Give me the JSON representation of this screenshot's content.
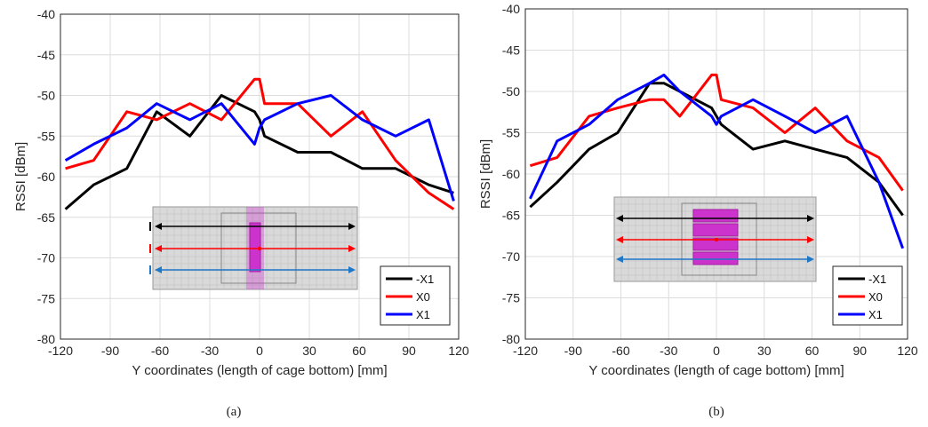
{
  "chart_data": [
    {
      "type": "line",
      "caption": "(a)",
      "xlabel": "Y coordinates (length of cage bottom) [mm]",
      "ylabel": "RSSI [dBm]",
      "xlim": [
        -120,
        120
      ],
      "ylim": [
        -80,
        -40
      ],
      "xticks": [
        "-120",
        "-90",
        "-60",
        "-30",
        "0",
        "30",
        "60",
        "90",
        "120"
      ],
      "yticks": [
        "-40",
        "-45",
        "-50",
        "-55",
        "-60",
        "-65",
        "-70",
        "-75",
        "-80"
      ],
      "grid": true,
      "legend_position": "bottom-right",
      "series": [
        {
          "name": "-X1",
          "color": "#000000",
          "x": [
            -117,
            -100,
            -80,
            -62,
            -42,
            -23,
            -3,
            0,
            3,
            23,
            43,
            62,
            82,
            102,
            117
          ],
          "y": [
            -64,
            -61,
            -59,
            -52,
            -55,
            -50,
            -52,
            -53,
            -55,
            -57,
            -57,
            -59,
            -59,
            -61,
            -62
          ]
        },
        {
          "name": "X0",
          "color": "#ff0000",
          "x": [
            -117,
            -100,
            -80,
            -62,
            -42,
            -23,
            -3,
            0,
            3,
            23,
            43,
            62,
            82,
            102,
            117
          ],
          "y": [
            -59,
            -58,
            -52,
            -53,
            -51,
            -53,
            -48,
            -48,
            -51,
            -51,
            -55,
            -52,
            -58,
            -62,
            -64
          ]
        },
        {
          "name": "X1",
          "color": "#0000ff",
          "x": [
            -117,
            -100,
            -80,
            -62,
            -42,
            -23,
            -3,
            0,
            3,
            23,
            43,
            62,
            82,
            102,
            117
          ],
          "y": [
            -58,
            -56,
            -54,
            -51,
            -53,
            -51,
            -56,
            -54,
            -53,
            -51,
            -50,
            -53,
            -55,
            -53,
            -63
          ]
        }
      ]
    },
    {
      "type": "line",
      "caption": "(b)",
      "xlabel": "Y coordinates (length of cage bottom) [mm]",
      "ylabel": "RSSI [dBm]",
      "xlim": [
        -120,
        120
      ],
      "ylim": [
        -80,
        -40
      ],
      "xticks": [
        "-120",
        "-90",
        "-60",
        "-30",
        "0",
        "30",
        "60",
        "90",
        "120"
      ],
      "yticks": [
        "-40",
        "-45",
        "-50",
        "-55",
        "-60",
        "-65",
        "-70",
        "-75",
        "-80"
      ],
      "grid": true,
      "legend_position": "bottom-right",
      "series": [
        {
          "name": "-X1",
          "color": "#000000",
          "x": [
            -117,
            -100,
            -80,
            -62,
            -42,
            -33,
            -23,
            -3,
            0,
            3,
            23,
            43,
            62,
            82,
            102,
            117
          ],
          "y": [
            -64,
            -61,
            -57,
            -55,
            -49,
            -49,
            -50,
            -52,
            -53,
            -54,
            -57,
            -56,
            -57,
            -58,
            -61,
            -65
          ]
        },
        {
          "name": "X0",
          "color": "#ff0000",
          "x": [
            -117,
            -100,
            -80,
            -62,
            -42,
            -33,
            -23,
            -3,
            0,
            3,
            23,
            43,
            62,
            82,
            102,
            117
          ],
          "y": [
            -59,
            -58,
            -53,
            -52,
            -51,
            -51,
            -53,
            -48,
            -48,
            -51,
            -52,
            -55,
            -52,
            -56,
            -58,
            -62
          ]
        },
        {
          "name": "X1",
          "color": "#0000ff",
          "x": [
            -117,
            -100,
            -80,
            -62,
            -42,
            -33,
            -23,
            -3,
            0,
            3,
            23,
            43,
            62,
            82,
            102,
            117
          ],
          "y": [
            -63,
            -56,
            -54,
            -51,
            -49,
            -48,
            -50,
            -53,
            -54,
            -53,
            -51,
            -53,
            -55,
            -53,
            -61,
            -69
          ]
        }
      ]
    }
  ],
  "inset_colors": {
    "cage_fill": "#d9d9d9",
    "cage_grid": "#bdbdbd",
    "device": "#cc33cc",
    "arrow_black": "#000000",
    "arrow_red": "#ff0000",
    "arrow_blue": "#1f77c8"
  }
}
